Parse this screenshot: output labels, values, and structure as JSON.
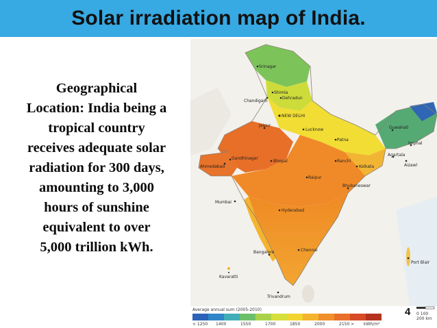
{
  "slide": {
    "title": "Solar irradiation map of India.",
    "body_lines": [
      "Geographical",
      "Location: India being a",
      "tropical country",
      "receives adequate solar",
      "radiation for 300 days,",
      "amounting to 3,000",
      "hours of sunshine",
      "equivalent to over",
      "5,000 trillion kWh."
    ],
    "slide_number": "4",
    "accent_color": "#37a9e3"
  },
  "map": {
    "cities": [
      "Srinagar",
      "Shimla",
      "Chandigarh",
      "Dehradun",
      "NEW DELHI",
      "Jaipur",
      "Lucknow",
      "Patna",
      "Guwahati",
      "Imphal",
      "Agartala",
      "Aizawl",
      "Ranchi",
      "Kolkata",
      "Ahmedabad",
      "Gandhinagar",
      "Bhopal",
      "Raipur",
      "Bhubaneswar",
      "Mumbai",
      "Hyderabad",
      "Bangalore",
      "Chennai",
      "Kavaratti",
      "Trivandrum",
      "Port Blair"
    ],
    "legend_title": "Average annual sum (2005-2010)",
    "legend_colors": [
      "#2b63b8",
      "#2f86c9",
      "#41aeb7",
      "#6cbf6a",
      "#a9d248",
      "#d6df3b",
      "#f2d531",
      "#f4b42e",
      "#f0902a",
      "#e8702a",
      "#d84b26",
      "#b5321f"
    ],
    "legend_ticks": [
      "< 1250",
      "1400",
      "1550",
      "1700",
      "1850",
      "2000",
      "2150 >",
      "kWh/m²"
    ],
    "scale_labels": [
      "0",
      "100",
      "200 km"
    ]
  }
}
